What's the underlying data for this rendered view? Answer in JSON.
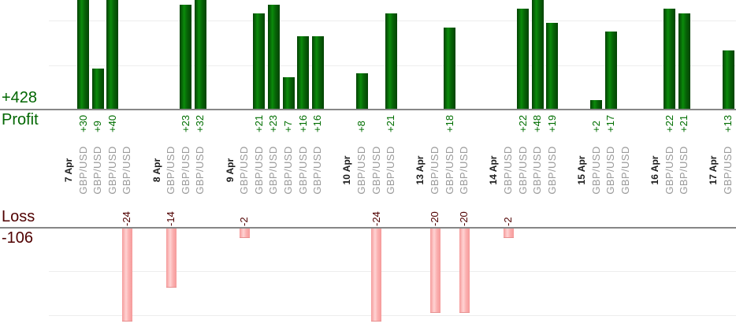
{
  "profit_panel": {
    "total_label": "+428",
    "axis_label": "Profit",
    "text_color": "#006600",
    "bar_color": "#0b8b0b"
  },
  "loss_panel": {
    "total_label": "-106",
    "axis_label": "Loss",
    "text_color": "#500000",
    "bar_color": "#f8a8a8"
  },
  "chart_data": {
    "type": "bar",
    "description": "Per-trade profit and loss bars grouped by date; profits point up in the top panel, losses point down in the bottom panel",
    "legend": "none",
    "grid": "horizontal light-gray lines",
    "totals": {
      "profit": 428,
      "loss": -106
    },
    "groups": [
      {
        "date": "7 Apr",
        "trades": [
          {
            "symbol": "GBP/USD",
            "value": 30,
            "label": "+30"
          },
          {
            "symbol": "GBP/USD",
            "value": 9,
            "label": "+9"
          },
          {
            "symbol": "GBP/USD",
            "value": 40,
            "label": "+40"
          },
          {
            "symbol": "GBP/USD",
            "value": -24,
            "label": "-24"
          }
        ]
      },
      {
        "date": "8 Apr",
        "trades": [
          {
            "symbol": "GBP/USD",
            "value": -14,
            "label": "-14"
          },
          {
            "symbol": "GBP/USD",
            "value": 23,
            "label": "+23"
          },
          {
            "symbol": "GBP/USD",
            "value": 32,
            "label": "+32"
          }
        ]
      },
      {
        "date": "9 Apr",
        "trades": [
          {
            "symbol": "GBP/USD",
            "value": -2,
            "label": "-2"
          },
          {
            "symbol": "GBP/USD",
            "value": 21,
            "label": "+21"
          },
          {
            "symbol": "GBP/USD",
            "value": 23,
            "label": "+23"
          },
          {
            "symbol": "GBP/USD",
            "value": 7,
            "label": "+7"
          },
          {
            "symbol": "GBP/USD",
            "value": 16,
            "label": "+16"
          },
          {
            "symbol": "GBP/USD",
            "value": 16,
            "label": "+16"
          }
        ]
      },
      {
        "date": "10 Apr",
        "trades": [
          {
            "symbol": "GBP/USD",
            "value": 8,
            "label": "+8"
          },
          {
            "symbol": "GBP/USD",
            "value": -24,
            "label": "-24"
          },
          {
            "symbol": "GBP/USD",
            "value": 21,
            "label": "+21"
          }
        ]
      },
      {
        "date": "13 Apr",
        "trades": [
          {
            "symbol": "GBP/USD",
            "value": -20,
            "label": "-20"
          },
          {
            "symbol": "GBP/USD",
            "value": 18,
            "label": "+18"
          },
          {
            "symbol": "GBP/USD",
            "value": -20,
            "label": "-20"
          }
        ]
      },
      {
        "date": "14 Apr",
        "trades": [
          {
            "symbol": "GBP/USD",
            "value": -2,
            "label": "-2"
          },
          {
            "symbol": "GBP/USD",
            "value": 22,
            "label": "+22"
          },
          {
            "symbol": "GBP/USD",
            "value": 48,
            "label": "+48"
          },
          {
            "symbol": "GBP/USD",
            "value": 19,
            "label": "+19"
          }
        ]
      },
      {
        "date": "15 Apr",
        "trades": [
          {
            "symbol": "GBP/USD",
            "value": 2,
            "label": "+2"
          },
          {
            "symbol": "GBP/USD",
            "value": 17,
            "label": "+17"
          },
          {
            "symbol": "GBP/USD",
            "value": 0,
            "label": ""
          }
        ]
      },
      {
        "date": "16 Apr",
        "trades": [
          {
            "symbol": "GBP/USD",
            "value": 22,
            "label": "+22"
          },
          {
            "symbol": "GBP/USD",
            "value": 21,
            "label": "+21"
          }
        ]
      },
      {
        "date": "17 Apr",
        "trades": [
          {
            "symbol": "GBP/USD",
            "value": 13,
            "label": "+13"
          }
        ]
      }
    ]
  }
}
